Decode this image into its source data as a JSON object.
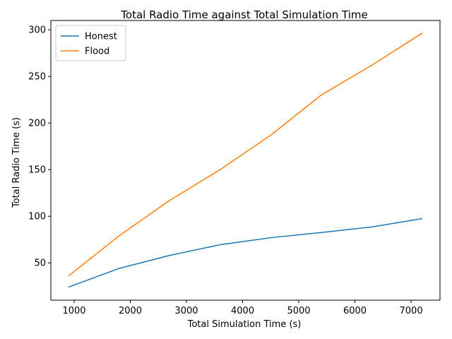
{
  "chart_data": {
    "type": "line",
    "title": "Total Radio Time against Total Simulation Time",
    "xlabel": "Total Simulation Time (s)",
    "ylabel": "Total Radio Time (s)",
    "xlim": [
      585,
      7515
    ],
    "ylim": [
      10,
      310
    ],
    "xticks": [
      1000,
      2000,
      3000,
      4000,
      5000,
      6000,
      7000
    ],
    "yticks": [
      50,
      100,
      150,
      200,
      250,
      300
    ],
    "grid": false,
    "legend_position": "upper-left",
    "x": [
      900,
      1800,
      2700,
      3600,
      4500,
      5400,
      6300,
      7200
    ],
    "series": [
      {
        "name": "Honest",
        "color": "#1f77b4",
        "values": [
          24,
          44,
          58,
          69.5,
          77,
          82.5,
          88.5,
          97.5
        ]
      },
      {
        "name": "Flood",
        "color": "#ff7f0e",
        "values": [
          36,
          79,
          117,
          150,
          187,
          230,
          262,
          296.5
        ]
      }
    ]
  }
}
